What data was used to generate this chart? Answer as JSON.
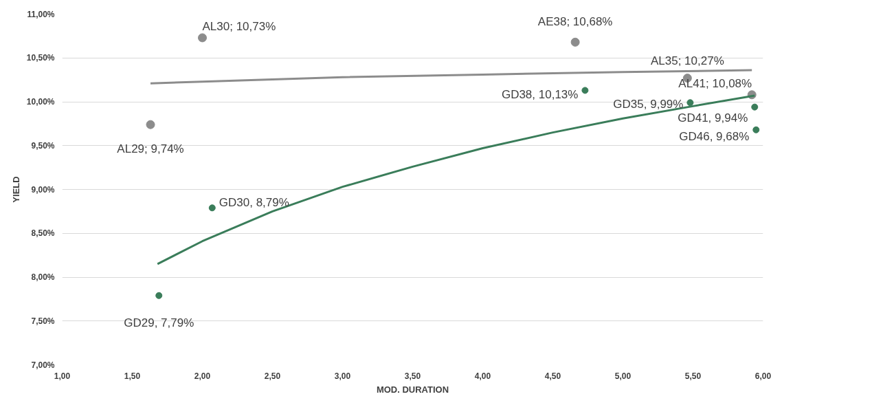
{
  "chart_data": {
    "type": "scatter",
    "xlabel": "MOD. DURATION",
    "ylabel": "YIELD",
    "xlim": [
      1.0,
      6.0
    ],
    "xticks": [
      {
        "value": 1.0,
        "label": "1,00"
      },
      {
        "value": 1.5,
        "label": "1,50"
      },
      {
        "value": 2.0,
        "label": "2,00"
      },
      {
        "value": 2.5,
        "label": "2,50"
      },
      {
        "value": 3.0,
        "label": "3,00"
      },
      {
        "value": 3.5,
        "label": "3,50"
      },
      {
        "value": 4.0,
        "label": "4,00"
      },
      {
        "value": 4.5,
        "label": "4,50"
      },
      {
        "value": 5.0,
        "label": "5,00"
      },
      {
        "value": 5.5,
        "label": "5,50"
      },
      {
        "value": 6.0,
        "label": "6,00"
      }
    ],
    "ylim": [
      7.0,
      11.0
    ],
    "yticks": [
      {
        "value": 7.0,
        "label": "7,00%"
      },
      {
        "value": 7.5,
        "label": "7,50%"
      },
      {
        "value": 8.0,
        "label": "8,00%"
      },
      {
        "value": 8.5,
        "label": "8,50%"
      },
      {
        "value": 9.0,
        "label": "9,00%"
      },
      {
        "value": 9.5,
        "label": "9,50%"
      },
      {
        "value": 10.0,
        "label": "10,00%"
      },
      {
        "value": 10.5,
        "label": "10,50%"
      },
      {
        "value": 11.0,
        "label": "11,00%"
      }
    ],
    "grid": "y",
    "marker": "circle",
    "series": [
      {
        "color": "#8c8c8c",
        "x": [
          1.63,
          2.0,
          4.66,
          5.46,
          5.92
        ],
        "values": [
          9.74,
          10.73,
          10.68,
          10.27,
          10.08
        ],
        "value_labels": [
          "AL29; 9,74%",
          "AL30; 10,73%",
          "AE38; 10,68%",
          "AL35; 10,27%",
          "AL41; 10,08%"
        ]
      },
      {
        "color": "#3a7d5a",
        "x": [
          1.69,
          2.07,
          4.73,
          5.48,
          5.94,
          5.95
        ],
        "values": [
          7.79,
          8.79,
          10.13,
          9.99,
          9.94,
          9.68
        ],
        "value_labels": [
          "GD29, 7,79%",
          "GD30, 8,79%",
          "GD38, 10,13%",
          "GD35, 9,99%",
          "GD41, 9,94%",
          "GD46, 9,68%"
        ]
      },
      {
        "type": "line",
        "marker": "none",
        "color": "#8c8c8c",
        "x": [
          1.63,
          2.0,
          3.0,
          4.0,
          5.0,
          5.92
        ],
        "values": [
          10.21,
          10.23,
          10.28,
          10.31,
          10.34,
          10.36
        ]
      },
      {
        "type": "line",
        "marker": "none",
        "color": "#3a7d5a",
        "x": [
          1.68,
          2.0,
          2.5,
          3.0,
          3.5,
          4.0,
          4.5,
          5.0,
          5.5,
          5.94
        ],
        "values": [
          8.15,
          8.41,
          8.75,
          9.03,
          9.26,
          9.47,
          9.65,
          9.81,
          9.95,
          10.07
        ]
      }
    ]
  }
}
